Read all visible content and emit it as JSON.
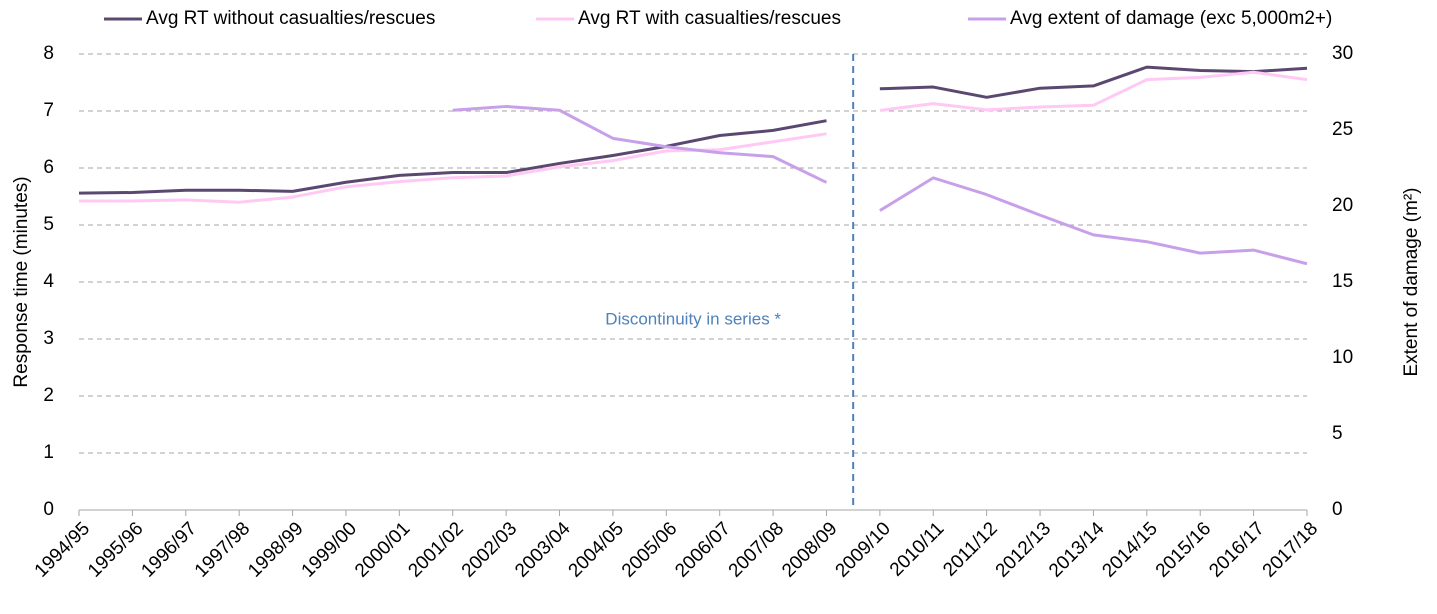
{
  "chart_data": {
    "type": "line",
    "categories": [
      "1994/95",
      "1995/96",
      "1996/97",
      "1997/98",
      "1998/99",
      "1999/00",
      "2000/01",
      "2001/02",
      "2002/03",
      "2003/04",
      "2004/05",
      "2005/06",
      "2006/07",
      "2007/08",
      "2008/09",
      "2009/10",
      "2010/11",
      "2011/12",
      "2012/13",
      "2013/14",
      "2014/15",
      "2015/16",
      "2016/17",
      "2017/18"
    ],
    "series": [
      {
        "name": "Avg RT without casualties/rescues",
        "color": "#5b4870",
        "values": [
          5.56,
          5.57,
          5.61,
          5.61,
          5.59,
          5.75,
          5.87,
          5.92,
          5.92,
          6.08,
          6.22,
          6.38,
          6.57,
          6.66,
          6.83,
          7.39,
          7.42,
          7.24,
          7.4,
          7.44,
          7.77,
          7.71,
          7.69,
          7.75
        ]
      },
      {
        "name": "Avg RT with casualties/rescues",
        "color": "#ffc9f4",
        "values": [
          5.42,
          5.42,
          5.44,
          5.4,
          5.49,
          5.67,
          5.76,
          5.83,
          5.86,
          6.02,
          6.13,
          6.3,
          6.32,
          6.46,
          6.6,
          7.01,
          7.13,
          7.02,
          7.07,
          7.1,
          7.55,
          7.59,
          7.68,
          7.55
        ]
      },
      {
        "name": "Avg extent of damage (exc 5,000m2+)",
        "color": "#c8a0ea",
        "axis": "y2",
        "values": [
          null,
          null,
          null,
          null,
          null,
          null,
          null,
          26.3,
          26.55,
          26.3,
          24.45,
          23.9,
          23.5,
          23.25,
          21.55,
          19.7,
          21.85,
          20.75,
          19.4,
          18.1,
          17.65,
          16.9,
          17.1,
          16.2
        ]
      }
    ],
    "y_label": "Response time (minutes)",
    "y2_label": "Extent of damage (m²)",
    "ylim": [
      0,
      8
    ],
    "yticks": [
      0,
      1,
      2,
      3,
      4,
      5,
      6,
      7,
      8
    ],
    "y2lim": [
      0,
      30
    ],
    "y2ticks": [
      0,
      5,
      10,
      15,
      20,
      25,
      30
    ],
    "grid": true,
    "discontinuity": {
      "after": "2008/09",
      "label": "Discontinuity in series *",
      "color": "#4f81bd"
    }
  }
}
